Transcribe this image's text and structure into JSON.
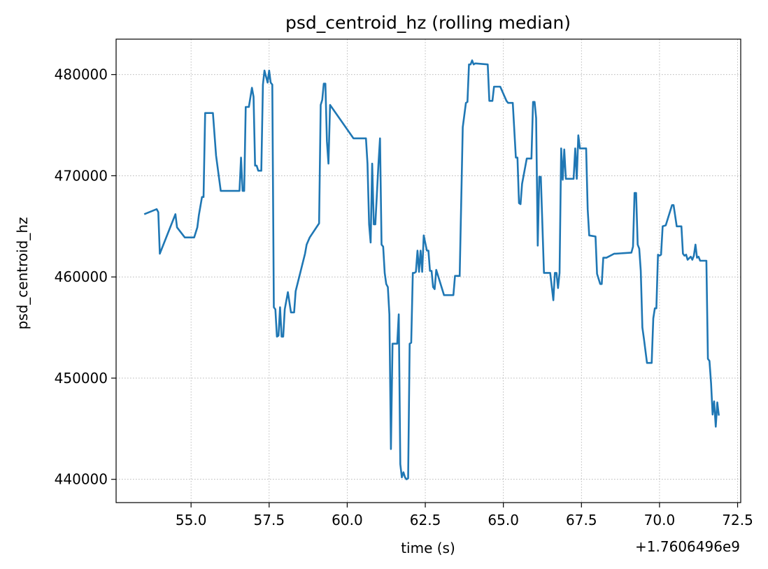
{
  "chart_data": {
    "type": "line",
    "title": "psd_centroid_hz (rolling median)",
    "xlabel": "time (s)",
    "ylabel": "psd_centroid_hz",
    "x_offset_label": "+1.7606496e9",
    "xlim": [
      52.6,
      72.6
    ],
    "ylim": [
      437700,
      483500
    ],
    "x_ticks": [
      55.0,
      57.5,
      60.0,
      62.5,
      65.0,
      67.5,
      70.0,
      72.5
    ],
    "x_tick_labels": [
      "55.0",
      "57.5",
      "60.0",
      "62.5",
      "65.0",
      "67.5",
      "70.0",
      "72.5"
    ],
    "y_ticks": [
      440000,
      450000,
      460000,
      470000,
      480000
    ],
    "y_tick_labels": [
      "440000",
      "450000",
      "460000",
      "470000",
      "480000"
    ],
    "grid": true,
    "colors": {
      "series": "#1f77b4"
    },
    "series": [
      {
        "x": [
          53.5,
          53.9,
          53.95,
          54.0,
          54.5,
          54.55,
          54.8,
          55.1,
          55.2,
          55.25,
          55.35,
          55.4,
          55.45,
          55.7,
          55.8,
          55.95,
          56.0,
          56.1,
          56.15,
          56.2,
          56.25,
          56.3,
          56.4,
          56.45,
          56.55,
          56.6,
          56.65,
          56.7,
          56.75,
          56.85,
          56.95,
          57.0,
          57.05,
          57.1,
          57.15,
          57.2,
          57.25,
          57.3,
          57.35,
          57.45,
          57.5,
          57.55,
          57.6,
          57.65,
          57.7,
          57.75,
          57.8,
          57.85,
          57.9,
          57.95,
          58.0,
          58.1,
          58.2,
          58.25,
          58.3,
          58.35,
          58.65,
          58.7,
          58.8,
          59.1,
          59.15,
          59.2,
          59.25,
          59.3,
          59.35,
          59.4,
          59.45,
          60.2,
          60.25,
          60.3,
          60.35,
          60.4,
          60.45,
          60.5,
          60.55,
          60.6,
          60.65,
          60.7,
          60.75,
          60.8,
          60.85,
          60.9,
          61.0,
          61.05,
          61.1,
          61.15,
          61.2,
          61.25,
          61.3,
          61.35,
          61.4,
          61.45,
          61.55,
          61.6,
          61.65,
          61.7,
          61.75,
          61.8,
          61.85,
          61.9,
          61.95,
          62.0,
          62.05,
          62.1,
          62.15,
          62.2,
          62.25,
          62.3,
          62.35,
          62.4,
          62.45,
          62.55,
          62.6,
          62.65,
          62.7,
          62.75,
          62.8,
          62.85,
          63.1,
          63.15,
          63.2,
          63.3,
          63.4,
          63.45,
          63.5,
          63.6,
          63.7,
          63.8,
          63.85,
          63.9,
          63.95,
          64.0,
          64.05,
          64.1,
          64.5,
          64.55,
          64.6,
          64.65,
          64.7,
          64.9,
          65.1,
          65.15,
          65.2,
          65.3,
          65.4,
          65.45,
          65.5,
          65.55,
          65.6,
          65.75,
          65.85,
          65.9,
          65.95,
          66.0,
          66.05,
          66.1,
          66.15,
          66.2,
          66.3,
          66.4,
          66.5,
          66.6,
          66.65,
          66.7,
          66.75,
          66.8,
          66.85,
          66.9,
          66.95,
          67.0,
          67.05,
          67.1,
          67.15,
          67.2,
          67.25,
          67.3,
          67.35,
          67.4,
          67.45,
          67.5,
          67.55,
          67.6,
          67.65,
          67.7,
          67.75,
          67.95,
          68.0,
          68.1,
          68.15,
          68.2,
          68.3,
          68.55,
          68.6,
          69.1,
          69.15,
          69.2,
          69.25,
          69.3,
          69.35,
          69.4,
          69.45,
          69.5,
          69.6,
          69.65,
          69.7,
          69.75,
          69.8,
          69.85,
          69.9,
          69.95,
          70.0,
          70.05,
          70.1,
          70.2,
          70.4,
          70.45,
          70.55,
          70.7,
          70.75,
          70.8,
          70.85,
          70.9,
          71.0,
          71.05,
          71.1,
          71.15,
          71.2,
          71.25,
          71.3,
          71.5,
          71.55,
          71.6,
          71.65,
          71.7,
          71.75,
          71.8,
          71.85,
          71.9
        ],
        "values": [
          466200,
          466700,
          466400,
          462300,
          466200,
          464900,
          463900,
          463900,
          464900,
          466100,
          467900,
          467900,
          476200,
          476200,
          472000,
          468500,
          468500,
          468500,
          468500,
          468500,
          468500,
          468500,
          468500,
          468500,
          468500,
          471800,
          468500,
          468500,
          476800,
          476800,
          478700,
          477800,
          471000,
          471000,
          470500,
          470500,
          470500,
          479000,
          480400,
          479200,
          480400,
          479200,
          479000,
          457000,
          456800,
          454100,
          454200,
          457000,
          454100,
          454100,
          456800,
          458500,
          456500,
          456500,
          456500,
          458600,
          462300,
          463200,
          463900,
          465300,
          477000,
          477500,
          479100,
          479100,
          473400,
          471200,
          477000,
          473700,
          473700,
          473700,
          473700,
          473700,
          473700,
          473700,
          473700,
          473700,
          471200,
          465200,
          463400,
          471200,
          465200,
          465200,
          471200,
          473700,
          463200,
          463000,
          460400,
          459300,
          459000,
          456300,
          443000,
          453400,
          453400,
          453400,
          456300,
          441500,
          440200,
          440700,
          440200,
          440000,
          440100,
          453400,
          453500,
          460400,
          460400,
          460500,
          462600,
          460500,
          462600,
          460500,
          464100,
          462600,
          462600,
          460600,
          460600,
          459000,
          458800,
          460700,
          458200,
          458200,
          458200,
          458200,
          458200,
          460100,
          460100,
          460100,
          474800,
          477200,
          477300,
          481000,
          481000,
          481400,
          481000,
          481100,
          481000,
          477400,
          477400,
          477400,
          478800,
          478800,
          477400,
          477200,
          477200,
          477200,
          471800,
          471800,
          467300,
          467200,
          469200,
          471700,
          471700,
          471700,
          477300,
          477300,
          475700,
          463100,
          469900,
          469900,
          460400,
          460400,
          460400,
          457700,
          460400,
          460400,
          458900,
          460400,
          472700,
          469600,
          472600,
          469700,
          469700,
          469700,
          469700,
          469700,
          469700,
          472700,
          469700,
          474000,
          472700,
          472700,
          472700,
          472700,
          472700,
          466700,
          464100,
          464000,
          460300,
          459300,
          459300,
          461900,
          461900,
          462300,
          462300,
          462400,
          463000,
          468300,
          468300,
          463200,
          462800,
          460600,
          455000,
          453900,
          451500,
          451500,
          451500,
          451500,
          455900,
          456900,
          456900,
          462200,
          462100,
          462200,
          465000,
          465100,
          467100,
          467100,
          465000,
          465000,
          462300,
          462100,
          462200,
          461700,
          462000,
          461700,
          462100,
          463200,
          461900,
          462000,
          461600,
          461600,
          451900,
          451700,
          449500,
          446400,
          447700,
          445200,
          447600,
          446300
        ]
      }
    ]
  }
}
